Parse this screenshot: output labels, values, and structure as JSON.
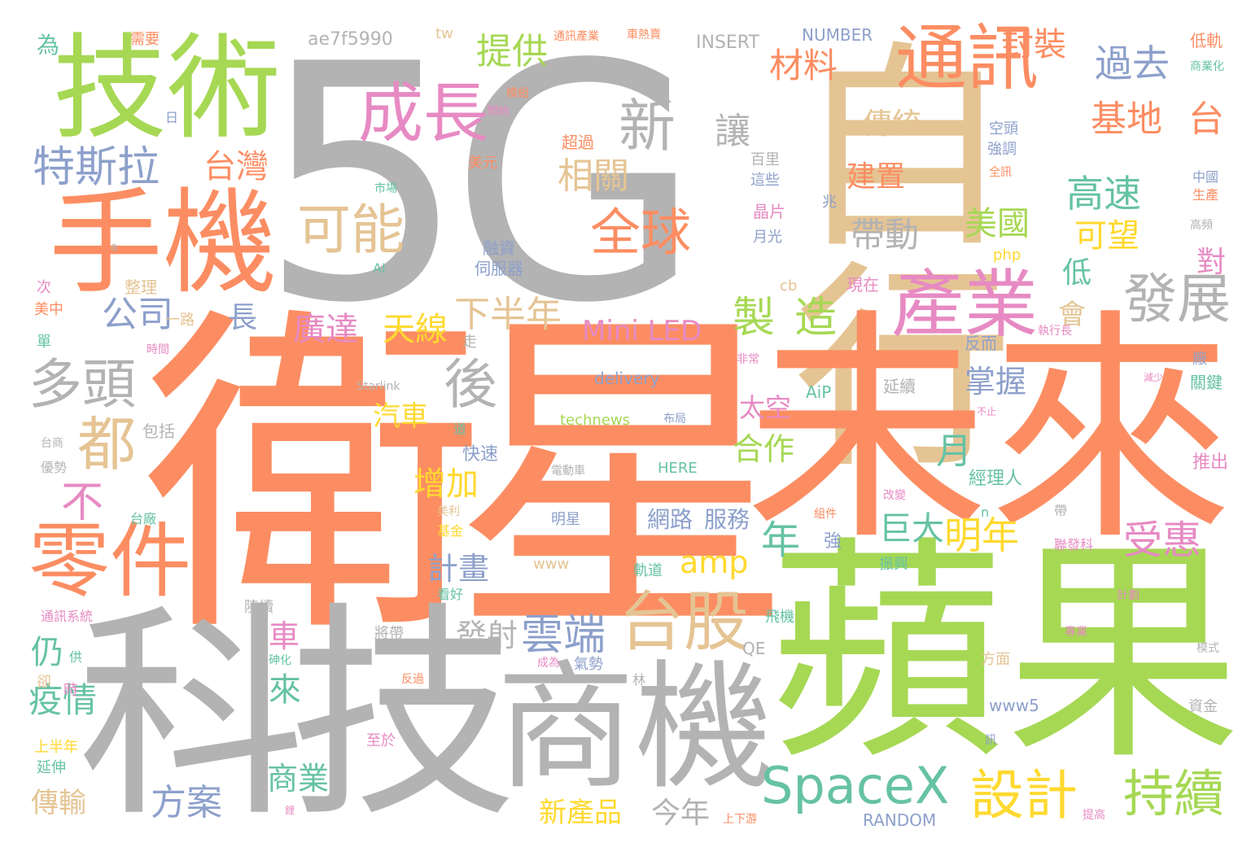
{
  "palette": {
    "gray": "#b3b3b3",
    "orange": "#fc8d62",
    "green": "#a6d854",
    "tan": "#e5c494",
    "pink": "#e78ac3",
    "blue": "#8da0cb",
    "teal": "#66c2a5",
    "yellow": "#ffd92f"
  },
  "words": [
    {
      "text": "5G",
      "c": "gray"
    },
    {
      "text": "自行",
      "c": "tan"
    },
    {
      "text": "衛星",
      "c": "orange"
    },
    {
      "text": "未來",
      "c": "orange"
    },
    {
      "text": "蘋果",
      "c": "green"
    },
    {
      "text": "科技",
      "c": "gray"
    },
    {
      "text": "商機",
      "c": "gray"
    },
    {
      "text": "技術",
      "c": "green"
    },
    {
      "text": "手機",
      "c": "orange"
    },
    {
      "text": "通訊",
      "c": "orange"
    },
    {
      "text": "產業",
      "c": "pink"
    },
    {
      "text": "零件",
      "c": "orange"
    },
    {
      "text": "成長",
      "c": "pink"
    },
    {
      "text": "SpaceX",
      "c": "teal"
    },
    {
      "text": "台股",
      "c": "tan"
    },
    {
      "text": "全球",
      "c": "orange"
    },
    {
      "text": "可能",
      "c": "tan"
    },
    {
      "text": "新",
      "c": "gray"
    },
    {
      "text": "雲端",
      "c": "blue"
    },
    {
      "text": "多頭",
      "c": "gray"
    },
    {
      "text": "後",
      "c": "gray"
    },
    {
      "text": "發展",
      "c": "gray"
    },
    {
      "text": "設計",
      "c": "yellow"
    },
    {
      "text": "持續",
      "c": "green"
    },
    {
      "text": "製",
      "c": "green"
    },
    {
      "text": "造",
      "c": "green"
    },
    {
      "text": "都",
      "c": "tan"
    },
    {
      "text": "特斯拉",
      "c": "blue"
    },
    {
      "text": "台灣",
      "c": "orange"
    },
    {
      "text": "材料",
      "c": "orange"
    },
    {
      "text": "提供",
      "c": "green"
    },
    {
      "text": "封裝",
      "c": "orange"
    },
    {
      "text": "過去",
      "c": "blue"
    },
    {
      "text": "基地",
      "c": "orange"
    },
    {
      "text": "台",
      "c": "orange"
    },
    {
      "text": "高速",
      "c": "teal"
    },
    {
      "text": "相關",
      "c": "tan"
    },
    {
      "text": "讓",
      "c": "gray"
    },
    {
      "text": "傳統",
      "c": "tan"
    },
    {
      "text": "建置",
      "c": "orange"
    },
    {
      "text": "帶動",
      "c": "gray"
    },
    {
      "text": "美國",
      "c": "green"
    },
    {
      "text": "可望",
      "c": "yellow"
    },
    {
      "text": "公司",
      "c": "blue"
    },
    {
      "text": "下半年",
      "c": "tan"
    },
    {
      "text": "廣達",
      "c": "pink"
    },
    {
      "text": "天線",
      "c": "yellow"
    },
    {
      "text": "Mini LED",
      "c": "pink"
    },
    {
      "text": "不",
      "c": "pink"
    },
    {
      "text": "年",
      "c": "teal"
    },
    {
      "text": "amp",
      "c": "yellow"
    },
    {
      "text": "明年",
      "c": "yellow"
    },
    {
      "text": "受惠",
      "c": "pink"
    },
    {
      "text": "增加",
      "c": "yellow"
    },
    {
      "text": "合作",
      "c": "green"
    },
    {
      "text": "太空",
      "c": "pink"
    },
    {
      "text": "汽車",
      "c": "yellow"
    },
    {
      "text": "掌握",
      "c": "blue"
    },
    {
      "text": "月",
      "c": "teal"
    },
    {
      "text": "巨大",
      "c": "teal"
    },
    {
      "text": "計畫",
      "c": "blue"
    },
    {
      "text": "發射",
      "c": "gray"
    },
    {
      "text": "疫情",
      "c": "teal"
    },
    {
      "text": "來",
      "c": "teal"
    },
    {
      "text": "方案",
      "c": "blue"
    },
    {
      "text": "商業",
      "c": "teal"
    },
    {
      "text": "新產品",
      "c": "yellow"
    },
    {
      "text": "今年",
      "c": "gray"
    },
    {
      "text": "傳輸",
      "c": "tan"
    },
    {
      "text": "車",
      "c": "pink"
    },
    {
      "text": "仍",
      "c": "teal"
    },
    {
      "text": "網路",
      "c": "blue"
    },
    {
      "text": "服務",
      "c": "blue"
    },
    {
      "text": "長",
      "c": "blue"
    },
    {
      "text": "低",
      "c": "teal"
    },
    {
      "text": "會",
      "c": "tan"
    },
    {
      "text": "對",
      "c": "pink"
    },
    {
      "text": "快速",
      "c": "blue"
    },
    {
      "text": "經理人",
      "c": "teal"
    },
    {
      "text": "推出",
      "c": "pink"
    },
    {
      "text": "ae7f5990",
      "c": "gray"
    },
    {
      "text": "tw",
      "c": "tan"
    },
    {
      "text": "INSERT",
      "c": "gray"
    },
    {
      "text": "NUMBER",
      "c": "blue"
    },
    {
      "text": "delivery",
      "c": "blue"
    },
    {
      "text": "technews",
      "c": "green"
    },
    {
      "text": "HERE",
      "c": "teal"
    },
    {
      "text": "RANDOM",
      "c": "blue"
    },
    {
      "text": "www",
      "c": "tan"
    },
    {
      "text": "www5",
      "c": "blue"
    },
    {
      "text": "QE",
      "c": "gray"
    },
    {
      "text": "cb",
      "c": "tan"
    },
    {
      "text": "php",
      "c": "yellow"
    },
    {
      "text": "AiP",
      "c": "teal"
    },
    {
      "text": "AI",
      "c": "teal"
    },
    {
      "text": "Starlink",
      "c": "gray"
    },
    {
      "text": "為",
      "c": "teal"
    },
    {
      "text": "需要",
      "c": "orange"
    },
    {
      "text": "日",
      "c": "blue"
    },
    {
      "text": "通訊產業",
      "c": "orange"
    },
    {
      "text": "車熱賣",
      "c": "orange"
    },
    {
      "text": "低軌",
      "c": "orange"
    },
    {
      "text": "商業化",
      "c": "teal"
    },
    {
      "text": "模組",
      "c": "orange"
    },
    {
      "text": "開始",
      "c": "pink"
    },
    {
      "text": "超過",
      "c": "orange"
    },
    {
      "text": "美元",
      "c": "orange"
    },
    {
      "text": "百里",
      "c": "gray"
    },
    {
      "text": "這些",
      "c": "blue"
    },
    {
      "text": "晶片",
      "c": "pink"
    },
    {
      "text": "月光",
      "c": "blue"
    },
    {
      "text": "兆",
      "c": "blue"
    },
    {
      "text": "空頭",
      "c": "blue"
    },
    {
      "text": "強調",
      "c": "blue"
    },
    {
      "text": "全訊",
      "c": "orange"
    },
    {
      "text": "中國",
      "c": "blue"
    },
    {
      "text": "生產",
      "c": "orange"
    },
    {
      "text": "高頻",
      "c": "gray"
    },
    {
      "text": "融資",
      "c": "blue"
    },
    {
      "text": "伺服器",
      "c": "blue"
    },
    {
      "text": "市場",
      "c": "teal"
    },
    {
      "text": "現在",
      "c": "pink"
    },
    {
      "text": "整理",
      "c": "tan"
    },
    {
      "text": "一路",
      "c": "tan"
    },
    {
      "text": "美中",
      "c": "orange"
    },
    {
      "text": "次",
      "c": "pink"
    },
    {
      "text": "單",
      "c": "teal"
    },
    {
      "text": "時間",
      "c": "pink"
    },
    {
      "text": "走",
      "c": "gray"
    },
    {
      "text": "包括",
      "c": "gray"
    },
    {
      "text": "台商",
      "c": "gray"
    },
    {
      "text": "優勢",
      "c": "gray"
    },
    {
      "text": "道",
      "c": "teal"
    },
    {
      "text": "布局",
      "c": "blue"
    },
    {
      "text": "電動車",
      "c": "gray"
    },
    {
      "text": "非常",
      "c": "pink"
    },
    {
      "text": "延續",
      "c": "gray"
    },
    {
      "text": "反而",
      "c": "blue"
    },
    {
      "text": "執行長",
      "c": "pink"
    },
    {
      "text": "廠",
      "c": "blue"
    },
    {
      "text": "關鍵",
      "c": "teal"
    },
    {
      "text": "減少",
      "c": "pink"
    },
    {
      "text": "不止",
      "c": "pink"
    },
    {
      "text": "台廠",
      "c": "teal"
    },
    {
      "text": "明星",
      "c": "blue"
    },
    {
      "text": "美利",
      "c": "tan"
    },
    {
      "text": "基金",
      "c": "yellow"
    },
    {
      "text": "改變",
      "c": "pink"
    },
    {
      "text": "組件",
      "c": "orange"
    },
    {
      "text": "強",
      "c": "blue"
    },
    {
      "text": "振興",
      "c": "teal"
    },
    {
      "text": "聯發科",
      "c": "pink"
    },
    {
      "text": "帶",
      "c": "gray"
    },
    {
      "text": "n",
      "c": "teal"
    },
    {
      "text": "看好",
      "c": "teal"
    },
    {
      "text": "軌道",
      "c": "teal"
    },
    {
      "text": "陸續",
      "c": "gray"
    },
    {
      "text": "將帶",
      "c": "gray"
    },
    {
      "text": "飛機",
      "c": "teal"
    },
    {
      "text": "氣勢",
      "c": "blue"
    },
    {
      "text": "成為",
      "c": "pink"
    },
    {
      "text": "方面",
      "c": "tan"
    },
    {
      "text": "資金",
      "c": "gray"
    },
    {
      "text": "模式",
      "c": "gray"
    },
    {
      "text": "計劃",
      "c": "pink"
    },
    {
      "text": "專業",
      "c": "pink"
    },
    {
      "text": "通訊系統",
      "c": "pink"
    },
    {
      "text": "卻",
      "c": "tan"
    },
    {
      "text": "時",
      "c": "pink"
    },
    {
      "text": "供",
      "c": "teal"
    },
    {
      "text": "上半年",
      "c": "yellow"
    },
    {
      "text": "延伸",
      "c": "teal"
    },
    {
      "text": "至於",
      "c": "pink"
    },
    {
      "text": "上下游",
      "c": "orange"
    },
    {
      "text": "提高",
      "c": "pink"
    },
    {
      "text": "林",
      "c": "gray"
    },
    {
      "text": "訊",
      "c": "blue"
    },
    {
      "text": "砷化",
      "c": "teal"
    },
    {
      "text": "反過",
      "c": "orange"
    },
    {
      "text": "鋰",
      "c": "pink"
    },
    {
      "text": "a",
      "c": "gray"
    }
  ]
}
